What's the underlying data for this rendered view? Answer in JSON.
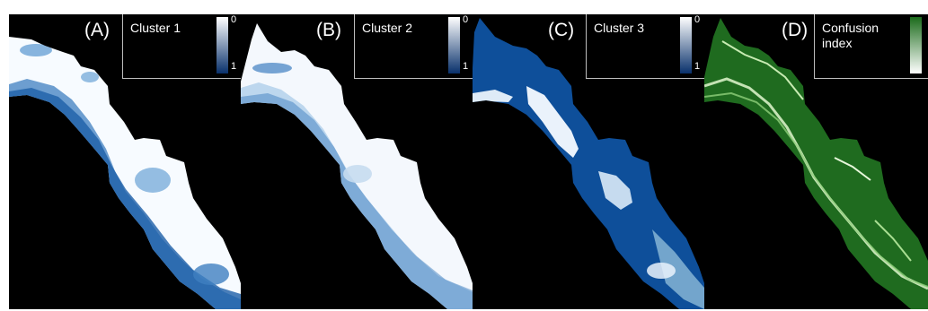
{
  "panels": [
    {
      "letter": "(A)",
      "title": "Cluster 1",
      "scale_min": "0",
      "scale_max": "1",
      "colormap": [
        "#ffffff",
        "#08306b"
      ],
      "fill": "#f7fbff",
      "edge": "#4a86c6"
    },
    {
      "letter": "(B)",
      "title": "Cluster 2",
      "scale_min": "0",
      "scale_max": "1",
      "colormap": [
        "#ffffff",
        "#08306b"
      ],
      "fill": "#f4f8fd",
      "edge": "#6aa2d6"
    },
    {
      "letter": "(C)",
      "title": "Cluster 3",
      "scale_min": "0",
      "scale_max": "1",
      "colormap": [
        "#ffffff",
        "#08306b"
      ],
      "fill": "#0e4f9a",
      "edge": "#dce9f6"
    },
    {
      "letter": "(D)",
      "title": "Confusion\nindex",
      "scale_min": "",
      "scale_max": "",
      "colormap": [
        "#ffffff",
        "#1b6b1b"
      ],
      "fill": "#1f6b1f",
      "edge": "#bfe6a8"
    }
  ]
}
